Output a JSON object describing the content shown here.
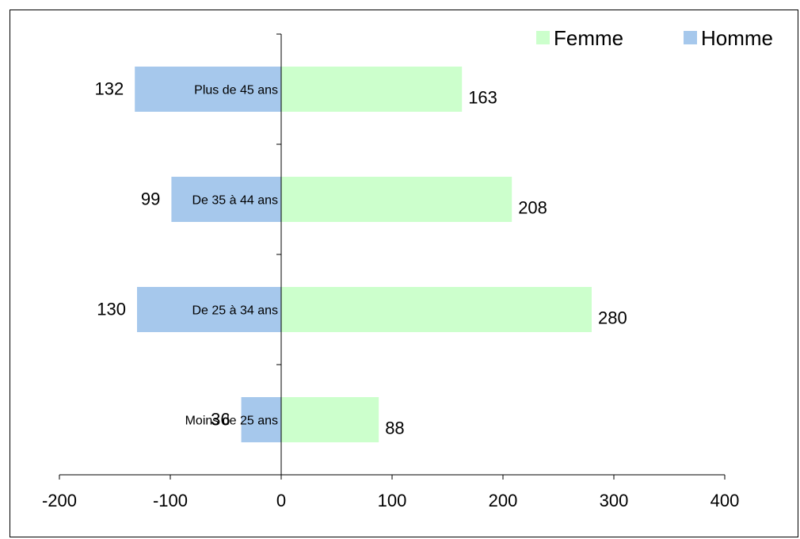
{
  "chart_data": {
    "type": "bar",
    "orientation": "horizontal",
    "stacking": "diverging",
    "categories": [
      "Moins de 25 ans",
      "De 25 à 34 ans",
      "De 35 à 44 ans",
      "Plus de 45 ans"
    ],
    "series": [
      {
        "name": "Homme",
        "values": [
          36,
          130,
          99,
          132
        ],
        "plotted_values": [
          -36,
          -130,
          -99,
          -132
        ],
        "color": "#a6c8ec"
      },
      {
        "name": "Femme",
        "values": [
          88,
          280,
          208,
          163
        ],
        "plotted_values": [
          88,
          280,
          208,
          163
        ],
        "color": "#ccffcc"
      }
    ],
    "xticks": [
      "-200",
      "-100",
      "0",
      "100",
      "200",
      "300",
      "400"
    ],
    "xlim": [
      -200,
      400
    ],
    "title": "",
    "xlabel": "",
    "ylabel": "",
    "grid": false,
    "legend": [
      "Femme",
      "Homme"
    ],
    "legend_position": "top-right"
  }
}
